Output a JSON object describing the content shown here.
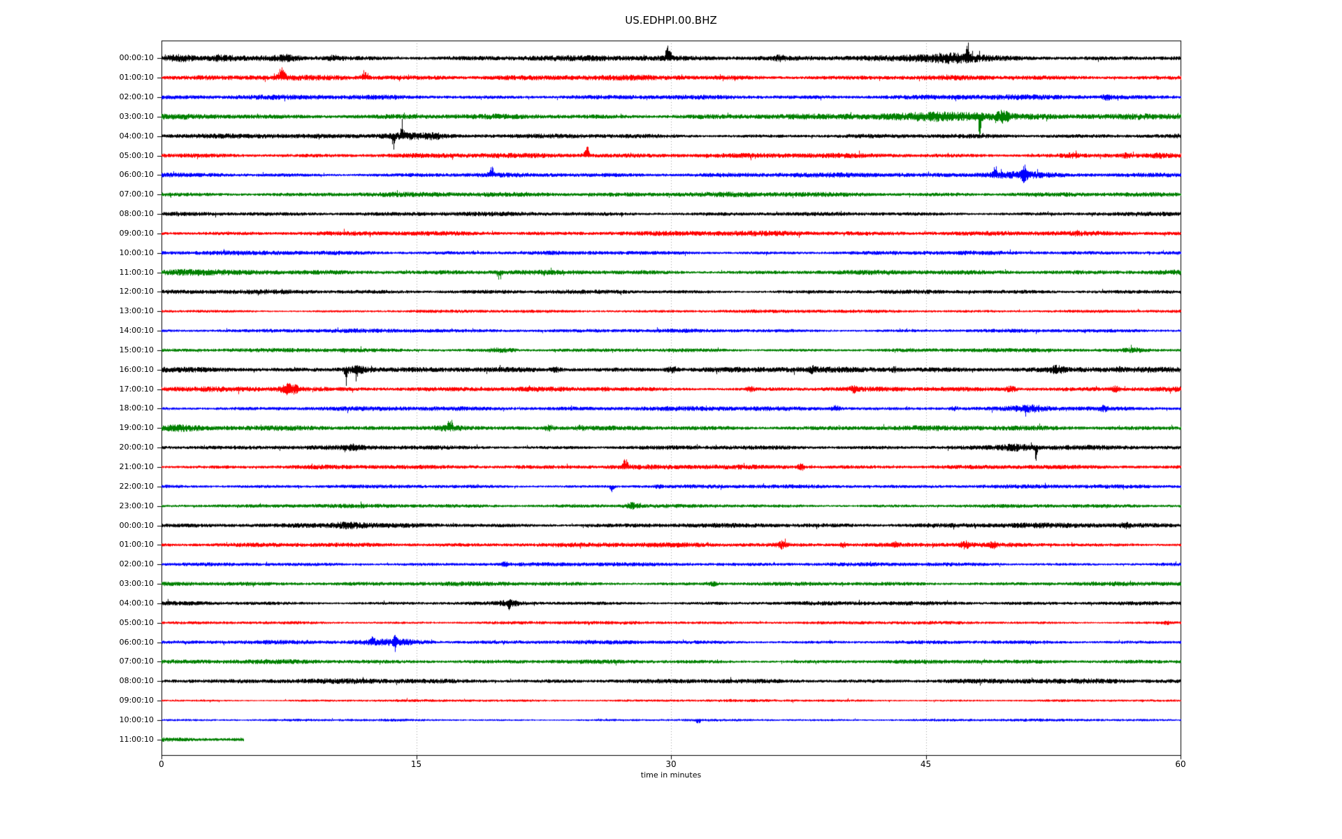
{
  "chart_data": {
    "type": "line",
    "variant": "seismogram-dayplot-helicorder",
    "title": "US.EDHPI.00.BHZ",
    "xlabel": "time in minutes",
    "xlim": [
      0,
      60
    ],
    "x_ticks": [
      0,
      15,
      30,
      45,
      60
    ],
    "grid": {
      "vertical_at_minutes": [
        15,
        30,
        45
      ],
      "style": "dotted",
      "color": "#a0a0a0"
    },
    "axis_color": "#000000",
    "background_color": "#ffffff",
    "trace_color_cycle": [
      "#000000",
      "#ff0000",
      "#0000ff",
      "#008000"
    ],
    "minutes_per_row": 60,
    "rows": [
      {
        "label": "00:00:10",
        "color": "#000000",
        "noise_level": 3.4,
        "coverage": 1,
        "events": [
          [
            0.5,
            1.2,
            1.9,
            "both"
          ],
          [
            3.0,
            0.8,
            1.7,
            "both"
          ],
          [
            6.8,
            1.2,
            1.7,
            "both"
          ],
          [
            9.9,
            0.6,
            1.7,
            "both"
          ],
          [
            29.7,
            0.25,
            3.2,
            "up"
          ],
          [
            36.2,
            0.4,
            1.8,
            "both"
          ],
          [
            45.1,
            2.6,
            2.4,
            "both"
          ],
          [
            47.4,
            0.15,
            3.8,
            "up"
          ]
        ]
      },
      {
        "label": "01:00:10",
        "color": "#ff0000",
        "noise_level": 3.2,
        "coverage": 1,
        "events": [
          [
            6.9,
            0.3,
            3.0,
            "up"
          ],
          [
            11.8,
            0.3,
            2.4,
            "up"
          ]
        ]
      },
      {
        "label": "02:00:10",
        "color": "#0000ff",
        "noise_level": 3.0,
        "coverage": 1,
        "events": [
          [
            55.5,
            0.3,
            2.0,
            "both"
          ]
        ]
      },
      {
        "label": "03:00:10",
        "color": "#008000",
        "noise_level": 3.4,
        "coverage": 1,
        "events": [
          [
            44.0,
            5.0,
            2.2,
            "both"
          ],
          [
            48.1,
            0.12,
            4.5,
            "down"
          ],
          [
            49.3,
            0.5,
            2.6,
            "both"
          ]
        ]
      },
      {
        "label": "04:00:10",
        "color": "#000000",
        "noise_level": 2.8,
        "coverage": 1,
        "events": [
          [
            13.2,
            2.4,
            2.2,
            "both"
          ],
          [
            13.6,
            0.12,
            4.2,
            "down"
          ],
          [
            14.1,
            0.12,
            4.6,
            "up"
          ],
          [
            15.7,
            0.7,
            1.7,
            "both"
          ]
        ]
      },
      {
        "label": "05:00:10",
        "color": "#ff0000",
        "noise_level": 3.0,
        "coverage": 1,
        "events": [
          [
            24.9,
            0.25,
            3.2,
            "up"
          ],
          [
            53.4,
            0.5,
            1.6,
            "both"
          ],
          [
            56.6,
            0.4,
            1.7,
            "both"
          ],
          [
            58.5,
            0.4,
            1.7,
            "both"
          ]
        ]
      },
      {
        "label": "06:00:10",
        "color": "#0000ff",
        "noise_level": 2.8,
        "coverage": 1,
        "events": [
          [
            19.3,
            0.22,
            2.8,
            "up"
          ],
          [
            48.8,
            3.0,
            2.3,
            "both"
          ],
          [
            49.0,
            0.15,
            3.0,
            "up"
          ],
          [
            50.7,
            0.18,
            4.8,
            "both"
          ]
        ]
      },
      {
        "label": "07:00:10",
        "color": "#008000",
        "noise_level": 3.0,
        "coverage": 1,
        "events": []
      },
      {
        "label": "08:00:10",
        "color": "#000000",
        "noise_level": 2.6,
        "coverage": 1,
        "events": []
      },
      {
        "label": "09:00:10",
        "color": "#ff0000",
        "noise_level": 3.0,
        "coverage": 1,
        "events": []
      },
      {
        "label": "10:00:10",
        "color": "#0000ff",
        "noise_level": 2.6,
        "coverage": 1,
        "events": []
      },
      {
        "label": "11:00:10",
        "color": "#008000",
        "noise_level": 3.0,
        "coverage": 1,
        "events": [
          [
            0.5,
            2.0,
            1.5,
            "both"
          ],
          [
            19.8,
            0.18,
            2.6,
            "down"
          ]
        ]
      },
      {
        "label": "12:00:10",
        "color": "#000000",
        "noise_level": 2.6,
        "coverage": 1,
        "events": []
      },
      {
        "label": "13:00:10",
        "color": "#ff0000",
        "noise_level": 2.0,
        "coverage": 1,
        "events": []
      },
      {
        "label": "14:00:10",
        "color": "#0000ff",
        "noise_level": 2.4,
        "coverage": 1,
        "events": []
      },
      {
        "label": "15:00:10",
        "color": "#008000",
        "noise_level": 2.4,
        "coverage": 1,
        "events": [
          [
            19.4,
            1.2,
            1.9,
            "both"
          ],
          [
            56.8,
            1.0,
            1.8,
            "both"
          ]
        ]
      },
      {
        "label": "16:00:10",
        "color": "#000000",
        "noise_level": 3.4,
        "coverage": 1,
        "events": [
          [
            10.9,
            1.2,
            2.2,
            "both"
          ],
          [
            10.8,
            0.12,
            3.8,
            "down"
          ],
          [
            11.4,
            0.12,
            3.2,
            "down"
          ],
          [
            23.0,
            0.4,
            1.6,
            "both"
          ],
          [
            29.8,
            0.5,
            2.0,
            "both"
          ],
          [
            38.1,
            0.3,
            1.8,
            "both"
          ],
          [
            43.0,
            0.3,
            1.6,
            "both"
          ],
          [
            52.4,
            0.6,
            1.9,
            "both"
          ],
          [
            56.2,
            0.3,
            1.6,
            "both"
          ]
        ]
      },
      {
        "label": "17:00:10",
        "color": "#ff0000",
        "noise_level": 3.0,
        "coverage": 1,
        "events": [
          [
            7.2,
            0.7,
            3.2,
            "both"
          ],
          [
            26.0,
            0.25,
            1.7,
            "both"
          ],
          [
            34.5,
            0.3,
            1.8,
            "both"
          ],
          [
            40.6,
            0.3,
            2.0,
            "both"
          ],
          [
            49.8,
            0.4,
            2.1,
            "both"
          ],
          [
            56.0,
            0.3,
            2.0,
            "both"
          ]
        ]
      },
      {
        "label": "18:00:10",
        "color": "#0000ff",
        "noise_level": 2.8,
        "coverage": 1,
        "events": [
          [
            39.5,
            0.4,
            2.1,
            "both"
          ],
          [
            46.5,
            0.3,
            1.8,
            "both"
          ],
          [
            50.3,
            1.6,
            2.2,
            "both"
          ],
          [
            55.3,
            0.3,
            2.0,
            "both"
          ]
        ]
      },
      {
        "label": "19:00:10",
        "color": "#008000",
        "noise_level": 3.0,
        "coverage": 1,
        "events": [
          [
            0.3,
            1.6,
            1.7,
            "both"
          ],
          [
            16.0,
            1.8,
            2.1,
            "both"
          ],
          [
            16.9,
            0.18,
            3.2,
            "up"
          ],
          [
            22.6,
            0.4,
            1.9,
            "both"
          ],
          [
            24.5,
            0.3,
            1.6,
            "both"
          ]
        ]
      },
      {
        "label": "20:00:10",
        "color": "#000000",
        "noise_level": 2.8,
        "coverage": 1,
        "events": [
          [
            11.0,
            0.6,
            1.8,
            "both"
          ],
          [
            49.7,
            1.2,
            1.9,
            "both"
          ],
          [
            51.4,
            0.13,
            4.2,
            "down"
          ]
        ]
      },
      {
        "label": "21:00:10",
        "color": "#ff0000",
        "noise_level": 2.8,
        "coverage": 1,
        "events": [
          [
            27.2,
            0.22,
            2.8,
            "up"
          ],
          [
            37.5,
            0.3,
            2.3,
            "both"
          ]
        ]
      },
      {
        "label": "22:00:10",
        "color": "#0000ff",
        "noise_level": 2.4,
        "coverage": 1,
        "events": [
          [
            26.4,
            0.22,
            2.8,
            "down"
          ],
          [
            29.1,
            0.3,
            1.7,
            "both"
          ]
        ]
      },
      {
        "label": "23:00:10",
        "color": "#008000",
        "noise_level": 2.4,
        "coverage": 1,
        "events": [
          [
            27.4,
            0.6,
            2.5,
            "both"
          ]
        ]
      },
      {
        "label": "00:00:10",
        "color": "#000000",
        "noise_level": 3.0,
        "coverage": 1,
        "events": [
          [
            10.3,
            1.4,
            1.9,
            "both"
          ],
          [
            56.6,
            0.3,
            2.1,
            "both"
          ]
        ]
      },
      {
        "label": "01:00:10",
        "color": "#ff0000",
        "noise_level": 2.8,
        "coverage": 1,
        "events": [
          [
            36.3,
            0.4,
            2.5,
            "both"
          ],
          [
            40.0,
            0.3,
            2.0,
            "both"
          ],
          [
            43.0,
            0.3,
            2.1,
            "both"
          ],
          [
            47.1,
            0.4,
            2.3,
            "both"
          ],
          [
            48.8,
            0.3,
            2.0,
            "both"
          ]
        ]
      },
      {
        "label": "02:00:10",
        "color": "#0000ff",
        "noise_level": 2.4,
        "coverage": 1,
        "events": [
          [
            20.1,
            0.22,
            2.0,
            "both"
          ]
        ]
      },
      {
        "label": "03:00:10",
        "color": "#008000",
        "noise_level": 2.6,
        "coverage": 1,
        "events": [
          [
            32.2,
            0.5,
            1.8,
            "both"
          ]
        ]
      },
      {
        "label": "04:00:10",
        "color": "#000000",
        "noise_level": 2.4,
        "coverage": 1,
        "events": [
          [
            20.0,
            1.0,
            2.0,
            "both"
          ],
          [
            20.4,
            0.13,
            3.0,
            "both"
          ]
        ]
      },
      {
        "label": "05:00:10",
        "color": "#ff0000",
        "noise_level": 2.0,
        "coverage": 1,
        "events": [
          [
            59.0,
            0.3,
            1.8,
            "both"
          ]
        ]
      },
      {
        "label": "06:00:10",
        "color": "#0000ff",
        "noise_level": 2.4,
        "coverage": 1,
        "events": [
          [
            12.4,
            2.6,
            2.2,
            "both"
          ],
          [
            12.3,
            0.18,
            3.0,
            "up"
          ],
          [
            13.7,
            0.13,
            5.0,
            "both"
          ]
        ]
      },
      {
        "label": "07:00:10",
        "color": "#008000",
        "noise_level": 2.6,
        "coverage": 1,
        "events": []
      },
      {
        "label": "08:00:10",
        "color": "#000000",
        "noise_level": 3.0,
        "coverage": 1,
        "events": []
      },
      {
        "label": "09:00:10",
        "color": "#ff0000",
        "noise_level": 1.6,
        "coverage": 1,
        "events": []
      },
      {
        "label": "10:00:10",
        "color": "#0000ff",
        "noise_level": 1.6,
        "coverage": 1,
        "events": [
          [
            31.5,
            0.18,
            2.4,
            "down"
          ]
        ]
      },
      {
        "label": "11:00:10",
        "color": "#008000",
        "noise_level": 3.0,
        "coverage": 0.08,
        "events": []
      }
    ]
  }
}
